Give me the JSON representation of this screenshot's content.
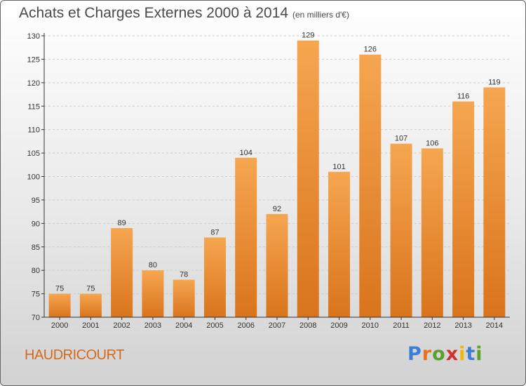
{
  "title": "Achats et Charges Externes 2000 à 2014",
  "unit_note": "(en milliers d'€)",
  "commune": "HAUDRICOURT",
  "logo": {
    "letters": [
      "P",
      "r",
      "o",
      "x",
      "i",
      "t",
      "i"
    ],
    "colors": [
      "#3a7fd5",
      "#e8731a",
      "#5aa02c",
      "#d32f2f",
      "#f2b705",
      "#3a7fd5",
      "#5aa02c"
    ]
  },
  "colors": {
    "bar_top": "#f6a650",
    "bar_bottom": "#d9741c",
    "axis": "#333333",
    "grid": "#cccccc",
    "title": "#4a4a4a",
    "commune": "#d2691e"
  },
  "chart_data": {
    "type": "bar",
    "categories": [
      "2000",
      "2001",
      "2002",
      "2003",
      "2004",
      "2005",
      "2006",
      "2007",
      "2008",
      "2009",
      "2010",
      "2011",
      "2012",
      "2013",
      "2014"
    ],
    "values": [
      75,
      75,
      89,
      80,
      78,
      87,
      104,
      92,
      129,
      101,
      126,
      107,
      106,
      116,
      119
    ],
    "ylim": [
      70,
      130
    ],
    "yticks": [
      70,
      75,
      80,
      85,
      90,
      95,
      100,
      105,
      110,
      115,
      120,
      125,
      130
    ],
    "grid": true,
    "data_labels": true
  }
}
